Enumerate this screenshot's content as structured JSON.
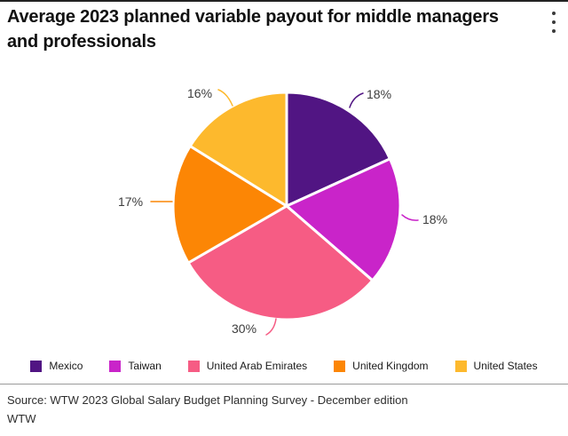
{
  "header": {
    "title": "Average 2023 planned variable payout for middle managers and professionals",
    "menu_icon": "kebab-menu"
  },
  "chart_data": {
    "type": "pie",
    "title": "Average 2023 planned variable payout for middle managers and professionals",
    "direction": "clockwise",
    "start_angle": "12 o'clock",
    "legend_position": "bottom",
    "slices": [
      {
        "label": "Mexico",
        "value": 18,
        "pct_label": "18%",
        "color": "#511583"
      },
      {
        "label": "Taiwan",
        "value": 18,
        "pct_label": "18%",
        "color": "#C924C9"
      },
      {
        "label": "United Arab Emirates",
        "value": 30,
        "pct_label": "30%",
        "color": "#F65C84"
      },
      {
        "label": "United Kingdom",
        "value": 17,
        "pct_label": "17%",
        "color": "#FC8605"
      },
      {
        "label": "United States",
        "value": 16,
        "pct_label": "16%",
        "color": "#FDB92D"
      }
    ]
  },
  "footer": {
    "source": "Source: WTW 2023 Global Salary Budget Planning Survey - December edition",
    "attribution": "WTW"
  }
}
